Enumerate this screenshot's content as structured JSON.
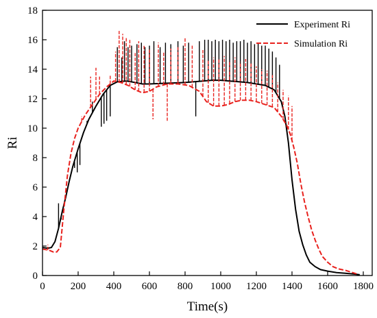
{
  "chart_data": {
    "type": "line",
    "title": "",
    "xlabel": "Time(s)",
    "ylabel": "Ri",
    "xlim": [
      0,
      1850
    ],
    "ylim": [
      0,
      18
    ],
    "x_ticks": [
      0,
      200,
      400,
      600,
      800,
      1000,
      1200,
      1400,
      1600,
      1800
    ],
    "y_ticks": [
      0,
      2,
      4,
      6,
      8,
      10,
      12,
      14,
      16,
      18
    ],
    "grid": false,
    "legend_position": "top-right",
    "series": [
      {
        "name": "Experiment Ri",
        "color": "#000000",
        "style": "solid",
        "smooth": [
          [
            0,
            1.9
          ],
          [
            30,
            1.85
          ],
          [
            50,
            1.9
          ],
          [
            70,
            2.3
          ],
          [
            90,
            3.2
          ],
          [
            110,
            4.3
          ],
          [
            130,
            5.3
          ],
          [
            150,
            6.4
          ],
          [
            170,
            7.4
          ],
          [
            200,
            8.6
          ],
          [
            230,
            9.7
          ],
          [
            260,
            10.6
          ],
          [
            300,
            11.5
          ],
          [
            340,
            12.3
          ],
          [
            380,
            12.9
          ],
          [
            420,
            13.15
          ],
          [
            470,
            13.2
          ],
          [
            520,
            13.1
          ],
          [
            560,
            13.0
          ],
          [
            600,
            13.0
          ],
          [
            700,
            13.05
          ],
          [
            800,
            13.1
          ],
          [
            900,
            13.2
          ],
          [
            950,
            13.25
          ],
          [
            1000,
            13.25
          ],
          [
            1050,
            13.2
          ],
          [
            1100,
            13.15
          ],
          [
            1150,
            13.1
          ],
          [
            1200,
            13.0
          ],
          [
            1250,
            12.9
          ],
          [
            1300,
            12.6
          ],
          [
            1340,
            11.8
          ],
          [
            1360,
            10.8
          ],
          [
            1380,
            9.0
          ],
          [
            1400,
            6.5
          ],
          [
            1420,
            4.5
          ],
          [
            1440,
            3.0
          ],
          [
            1460,
            2.1
          ],
          [
            1480,
            1.4
          ],
          [
            1500,
            0.9
          ],
          [
            1530,
            0.6
          ],
          [
            1560,
            0.4
          ],
          [
            1600,
            0.3
          ],
          [
            1650,
            0.2
          ],
          [
            1700,
            0.15
          ],
          [
            1750,
            0.1
          ],
          [
            1780,
            0.05
          ]
        ],
        "spikes": [
          [
            90,
            4.9
          ],
          [
            105,
            3.8
          ],
          [
            180,
            7.3
          ],
          [
            195,
            7.0
          ],
          [
            210,
            7.5
          ],
          [
            250,
            10.5
          ],
          [
            280,
            11.8
          ],
          [
            330,
            10.1
          ],
          [
            345,
            10.3
          ],
          [
            360,
            10.5
          ],
          [
            380,
            10.8
          ],
          [
            420,
            15.5
          ],
          [
            445,
            14.8
          ],
          [
            460,
            15.9
          ],
          [
            480,
            15.5
          ],
          [
            500,
            15.6
          ],
          [
            530,
            15.7
          ],
          [
            555,
            15.8
          ],
          [
            575,
            15.5
          ],
          [
            600,
            15.6
          ],
          [
            625,
            15.9
          ],
          [
            660,
            15.5
          ],
          [
            690,
            15.8
          ],
          [
            720,
            15.7
          ],
          [
            760,
            15.9
          ],
          [
            790,
            15.6
          ],
          [
            820,
            15.8
          ],
          [
            860,
            10.8
          ],
          [
            880,
            15.9
          ],
          [
            910,
            16.0
          ],
          [
            930,
            16.0
          ],
          [
            950,
            15.9
          ],
          [
            970,
            16.0
          ],
          [
            990,
            15.9
          ],
          [
            1010,
            16.0
          ],
          [
            1030,
            15.9
          ],
          [
            1050,
            16.0
          ],
          [
            1070,
            15.8
          ],
          [
            1090,
            15.9
          ],
          [
            1110,
            15.9
          ],
          [
            1130,
            16.0
          ],
          [
            1150,
            15.8
          ],
          [
            1170,
            15.9
          ],
          [
            1190,
            15.7
          ],
          [
            1210,
            15.8
          ],
          [
            1230,
            15.6
          ],
          [
            1250,
            15.6
          ],
          [
            1270,
            15.4
          ],
          [
            1290,
            15.2
          ],
          [
            1310,
            14.8
          ],
          [
            1330,
            14.3
          ]
        ]
      },
      {
        "name": "Simulation Ri",
        "color": "#e8211d",
        "style": "dashed",
        "smooth": [
          [
            0,
            1.8
          ],
          [
            40,
            1.7
          ],
          [
            60,
            1.6
          ],
          [
            80,
            1.6
          ],
          [
            100,
            1.9
          ],
          [
            120,
            4.5
          ],
          [
            140,
            6.8
          ],
          [
            160,
            8.3
          ],
          [
            180,
            9.3
          ],
          [
            200,
            10.0
          ],
          [
            240,
            10.9
          ],
          [
            280,
            11.6
          ],
          [
            320,
            12.3
          ],
          [
            360,
            12.8
          ],
          [
            400,
            13.2
          ],
          [
            440,
            13.1
          ],
          [
            480,
            12.9
          ],
          [
            520,
            12.6
          ],
          [
            560,
            12.4
          ],
          [
            600,
            12.5
          ],
          [
            640,
            12.8
          ],
          [
            700,
            13.0
          ],
          [
            760,
            13.0
          ],
          [
            820,
            12.9
          ],
          [
            880,
            12.5
          ],
          [
            920,
            11.8
          ],
          [
            960,
            11.5
          ],
          [
            1000,
            11.5
          ],
          [
            1040,
            11.6
          ],
          [
            1080,
            11.8
          ],
          [
            1120,
            11.9
          ],
          [
            1160,
            11.9
          ],
          [
            1200,
            11.8
          ],
          [
            1250,
            11.6
          ],
          [
            1300,
            11.4
          ],
          [
            1340,
            10.8
          ],
          [
            1370,
            10.2
          ],
          [
            1390,
            9.6
          ],
          [
            1410,
            8.7
          ],
          [
            1430,
            7.6
          ],
          [
            1450,
            6.2
          ],
          [
            1470,
            5.0
          ],
          [
            1490,
            4.0
          ],
          [
            1510,
            3.1
          ],
          [
            1530,
            2.4
          ],
          [
            1550,
            1.8
          ],
          [
            1570,
            1.3
          ],
          [
            1600,
            0.9
          ],
          [
            1630,
            0.6
          ],
          [
            1660,
            0.45
          ],
          [
            1700,
            0.35
          ],
          [
            1740,
            0.2
          ],
          [
            1770,
            0.08
          ]
        ],
        "spikes": [
          [
            30,
            2.1
          ],
          [
            150,
            7.5
          ],
          [
            220,
            10.8
          ],
          [
            270,
            13.5
          ],
          [
            300,
            14.1
          ],
          [
            320,
            13.5
          ],
          [
            380,
            13.6
          ],
          [
            410,
            15.2
          ],
          [
            430,
            16.6
          ],
          [
            450,
            16.4
          ],
          [
            470,
            16.2
          ],
          [
            490,
            16.0
          ],
          [
            520,
            15.1
          ],
          [
            540,
            15.9
          ],
          [
            570,
            15.6
          ],
          [
            600,
            15.4
          ],
          [
            620,
            10.6
          ],
          [
            650,
            15.8
          ],
          [
            680,
            15.2
          ],
          [
            700,
            10.5
          ],
          [
            720,
            15.4
          ],
          [
            760,
            15.5
          ],
          [
            800,
            16.1
          ],
          [
            840,
            15.6
          ],
          [
            900,
            15.3
          ],
          [
            930,
            14.6
          ],
          [
            960,
            14.8
          ],
          [
            990,
            14.7
          ],
          [
            1020,
            14.9
          ],
          [
            1050,
            14.6
          ],
          [
            1080,
            14.8
          ],
          [
            1110,
            14.5
          ],
          [
            1140,
            14.7
          ],
          [
            1170,
            14.4
          ],
          [
            1200,
            14.2
          ],
          [
            1230,
            14.0
          ],
          [
            1260,
            13.9
          ],
          [
            1290,
            13.6
          ],
          [
            1320,
            13.1
          ],
          [
            1350,
            12.6
          ],
          [
            1380,
            12.2
          ],
          [
            1400,
            11.5
          ]
        ]
      }
    ]
  }
}
